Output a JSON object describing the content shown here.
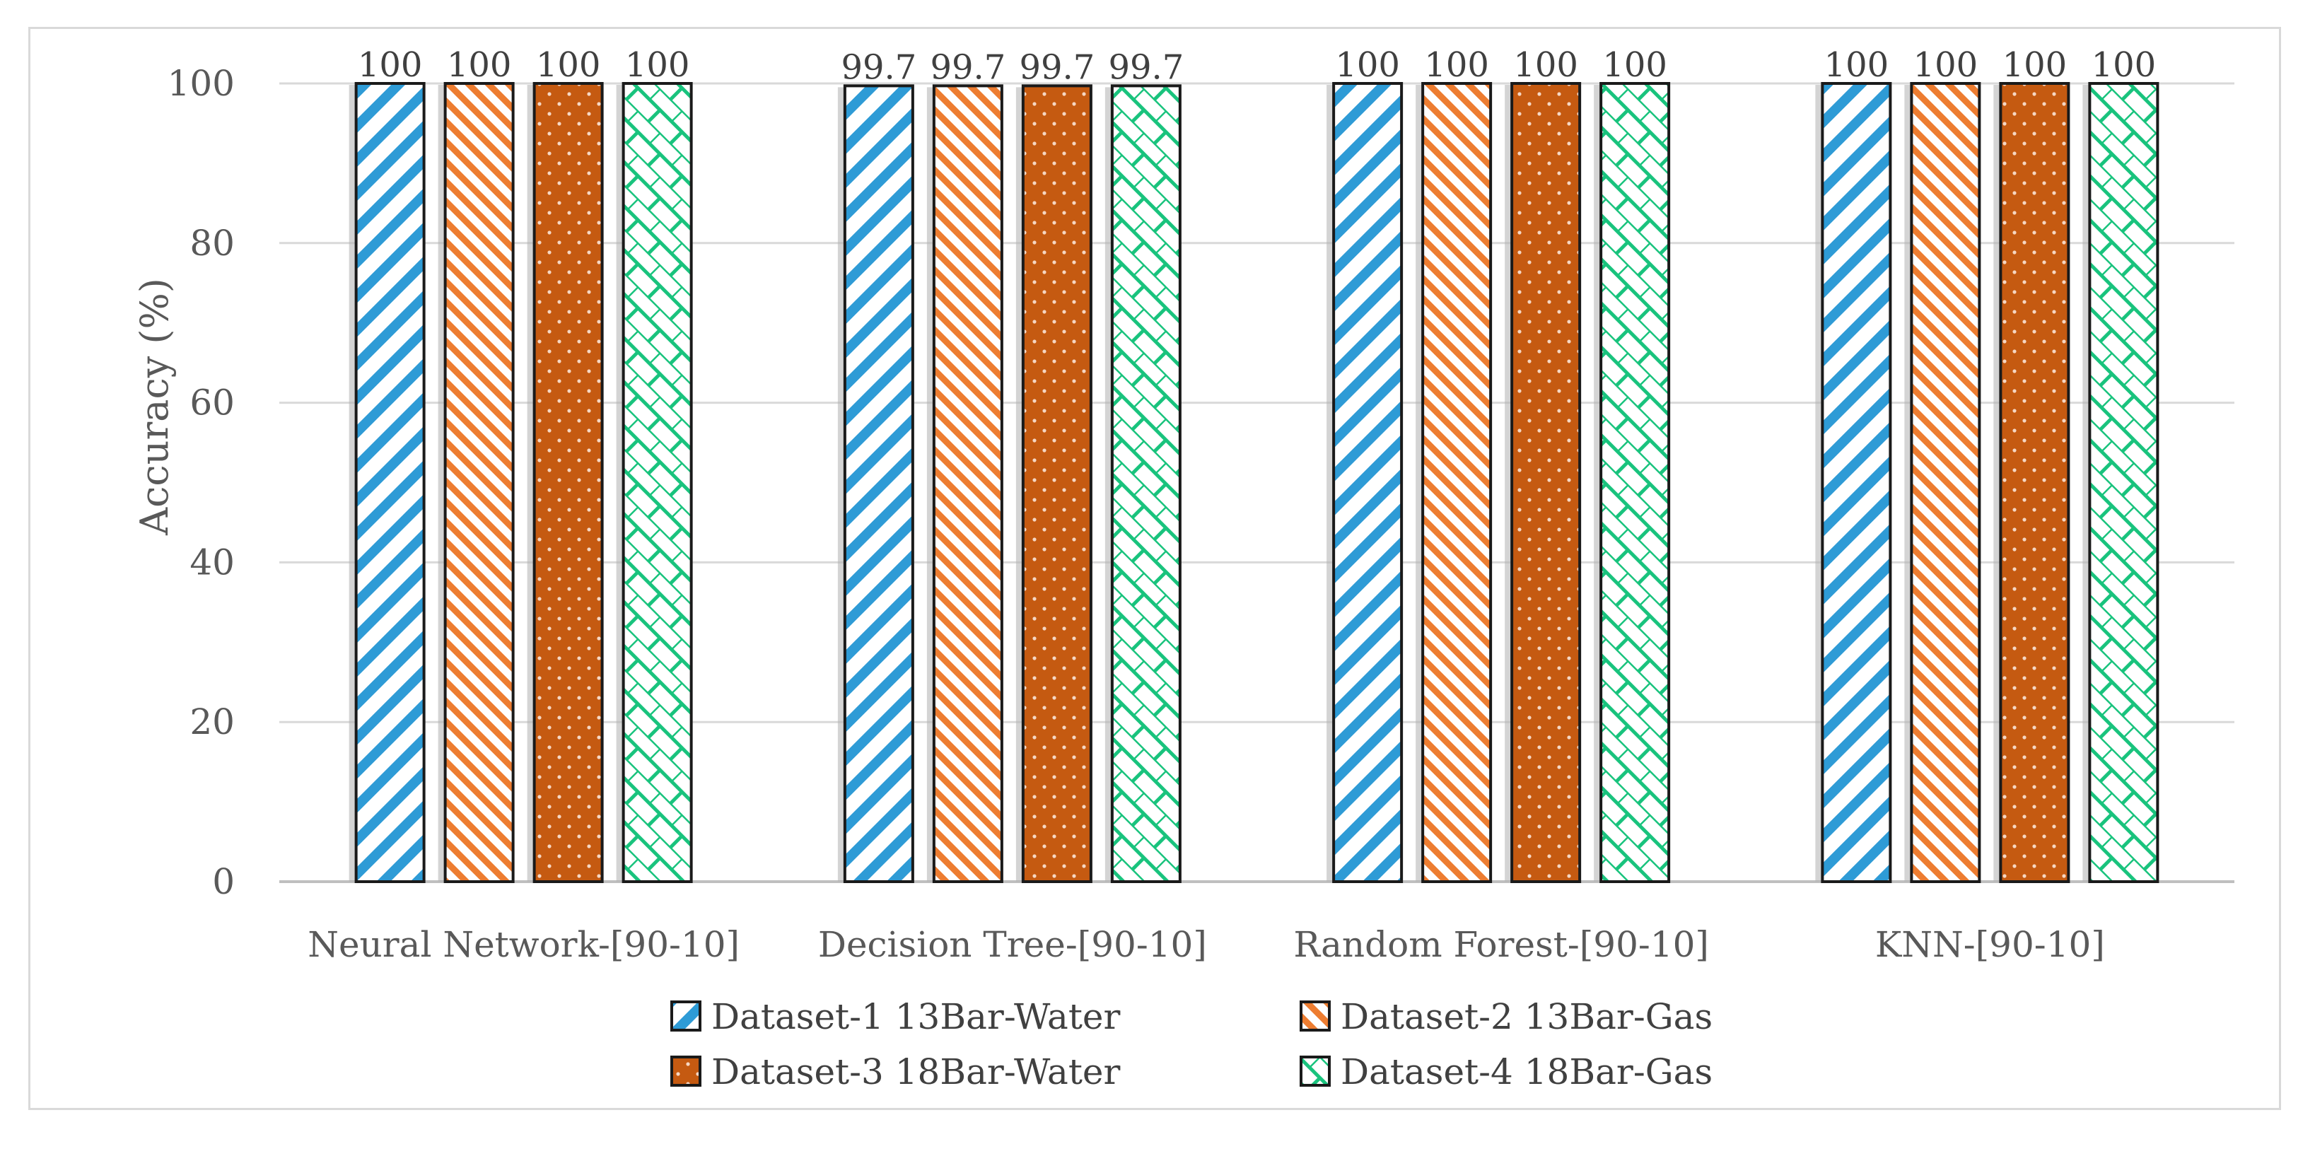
{
  "chart_data": {
    "type": "bar",
    "title": "",
    "xlabel": "",
    "ylabel": "Accuracy (%)",
    "ylim": [
      0,
      100
    ],
    "yticks": [
      0,
      20,
      40,
      60,
      80,
      100
    ],
    "grid": true,
    "legend_position": "bottom",
    "categories": [
      "Neural Network-[90-10]",
      "Decision Tree-[90-10]",
      "Random Forest-[90-10]",
      "KNN-[90-10]"
    ],
    "series": [
      {
        "name": "Dataset-1 13Bar-Water",
        "values": [
          100,
          99.7,
          100,
          100
        ],
        "color": "#2e9bd6",
        "pattern": "diagonal-stripes"
      },
      {
        "name": "Dataset-2 13Bar-Gas",
        "values": [
          100,
          99.7,
          100,
          100
        ],
        "color": "#ed7d31",
        "pattern": "fine-diagonal-stripes"
      },
      {
        "name": "Dataset-3 18Bar-Water",
        "values": [
          100,
          99.7,
          100,
          100
        ],
        "color": "#c55a11",
        "pattern": "dots"
      },
      {
        "name": "Dataset-4 18Bar-Gas",
        "values": [
          100,
          99.7,
          100,
          100
        ],
        "color": "#19c37d",
        "pattern": "brick"
      }
    ],
    "data_labels": [
      [
        "100",
        "99.7",
        "100",
        "100"
      ],
      [
        "100",
        "99.7",
        "100",
        "100"
      ],
      [
        "100",
        "99.7",
        "100",
        "100"
      ],
      [
        "100",
        "99.7",
        "100",
        "100"
      ]
    ]
  }
}
